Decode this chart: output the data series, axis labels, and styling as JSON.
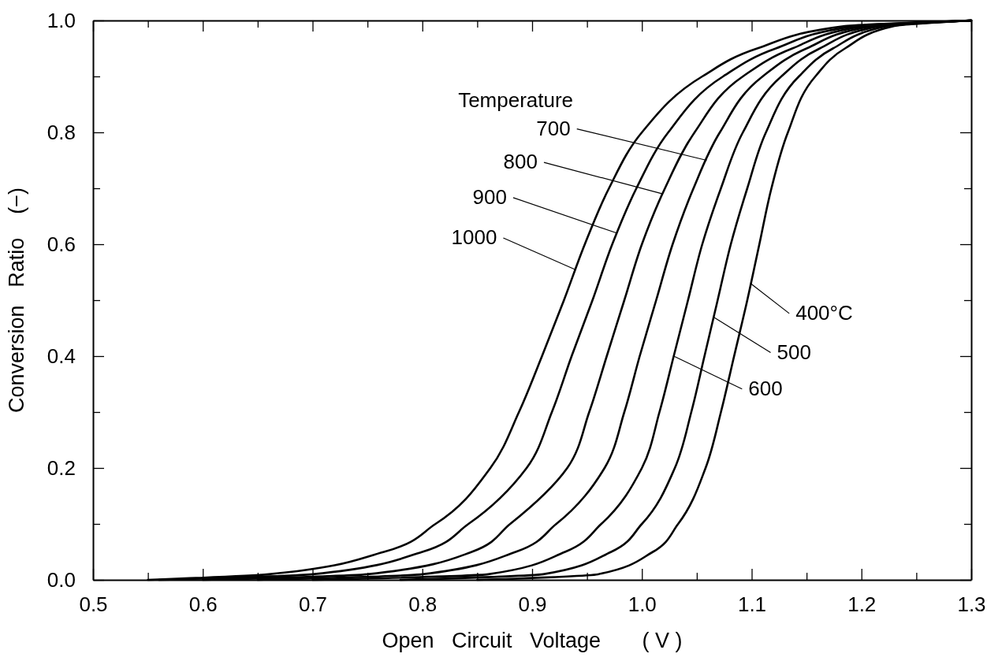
{
  "chart_data": {
    "type": "line",
    "xlabel": "Open   Circuit   Voltage       ( V )",
    "ylabel": "Conversion   Ratio    (−)",
    "annotations": [
      "Temperature",
      {
        "text": "700",
        "x": 1.059,
        "y": 0.75
      },
      {
        "text": "800",
        "x": 1.019,
        "y": 0.69
      },
      {
        "text": "900",
        "x": 0.977,
        "y": 0.62
      },
      {
        "text": "1000",
        "x": 0.939,
        "y": 0.555
      },
      {
        "text": "400°C",
        "x": 1.099,
        "y": 0.53
      },
      {
        "text": "500",
        "x": 1.065,
        "y": 0.47
      },
      {
        "text": "600",
        "x": 1.029,
        "y": 0.4
      }
    ],
    "xlim": [
      0.5,
      1.3
    ],
    "ylim": [
      0,
      1
    ],
    "xticks": [
      {
        "value": 0.5,
        "label": "0.5"
      },
      {
        "value": 0.55,
        "label": null
      },
      {
        "value": 0.6,
        "label": "0.6"
      },
      {
        "value": 0.65,
        "label": null
      },
      {
        "value": 0.7,
        "label": "0.7"
      },
      {
        "value": 0.75,
        "label": null
      },
      {
        "value": 0.8,
        "label": "0.8"
      },
      {
        "value": 0.85,
        "label": null
      },
      {
        "value": 0.9,
        "label": "0.9"
      },
      {
        "value": 0.95,
        "label": null
      },
      {
        "value": 1.0,
        "label": "1.0"
      },
      {
        "value": 1.05,
        "label": null
      },
      {
        "value": 1.1,
        "label": "1.1"
      },
      {
        "value": 1.15,
        "label": null
      },
      {
        "value": 1.2,
        "label": "1.2"
      },
      {
        "value": 1.25,
        "label": null
      },
      {
        "value": 1.3,
        "label": "1.3"
      }
    ],
    "yticks": [
      {
        "value": 0,
        "label": "0.0"
      },
      {
        "value": 0.1,
        "label": null
      },
      {
        "value": 0.2,
        "label": "0.2"
      },
      {
        "value": 0.3,
        "label": null
      },
      {
        "value": 0.4,
        "label": "0.4"
      },
      {
        "value": 0.5,
        "label": null
      },
      {
        "value": 0.6,
        "label": "0.6"
      },
      {
        "value": 0.7,
        "label": null
      },
      {
        "value": 0.8,
        "label": "0.8"
      },
      {
        "value": 0.9,
        "label": null
      },
      {
        "value": 1.0,
        "label": "1.0"
      }
    ],
    "grid": false,
    "marker": "none",
    "line_style": "solid",
    "series": [
      {
        "color": "#000000",
        "x": [
          0.55,
          0.66,
          0.765,
          0.812,
          0.862,
          0.888,
          0.909,
          0.929,
          0.948,
          0.97,
          1.0,
          1.055,
          1.105,
          1.185,
          1.3
        ],
        "values": [
          0,
          0.01,
          0.05,
          0.1,
          0.2,
          0.3,
          0.4,
          0.5,
          0.6,
          0.7,
          0.8,
          0.9,
          0.95,
          0.99,
          1
        ]
      },
      {
        "color": "#000000",
        "x": [
          0.56,
          0.7,
          0.8,
          0.842,
          0.895,
          0.918,
          0.936,
          0.955,
          0.973,
          0.995,
          1.024,
          1.074,
          1.122,
          1.195,
          1.3
        ],
        "values": [
          0,
          0.01,
          0.05,
          0.1,
          0.2,
          0.3,
          0.4,
          0.5,
          0.6,
          0.7,
          0.8,
          0.9,
          0.95,
          0.99,
          1
        ]
      },
      {
        "color": "#000000",
        "x": [
          0.6,
          0.75,
          0.845,
          0.88,
          0.932,
          0.952,
          0.968,
          0.984,
          1.0,
          1.021,
          1.048,
          1.092,
          1.137,
          1.203,
          1.3
        ],
        "values": [
          0,
          0.01,
          0.05,
          0.1,
          0.2,
          0.3,
          0.4,
          0.5,
          0.6,
          0.7,
          0.8,
          0.9,
          0.95,
          0.99,
          1
        ]
      },
      {
        "color": "#000000",
        "x": [
          0.65,
          0.8,
          0.885,
          0.922,
          0.966,
          0.984,
          0.998,
          1.013,
          1.028,
          1.047,
          1.071,
          1.11,
          1.15,
          1.21,
          1.3
        ],
        "values": [
          0,
          0.01,
          0.05,
          0.1,
          0.2,
          0.3,
          0.4,
          0.5,
          0.6,
          0.7,
          0.8,
          0.9,
          0.95,
          0.99,
          1
        ]
      },
      {
        "color": "#000000",
        "x": [
          0.7,
          0.86,
          0.93,
          0.963,
          1.0,
          1.016,
          1.029,
          1.042,
          1.055,
          1.072,
          1.092,
          1.127,
          1.162,
          1.217,
          1.3
        ],
        "values": [
          0,
          0.01,
          0.05,
          0.1,
          0.2,
          0.3,
          0.4,
          0.5,
          0.6,
          0.7,
          0.8,
          0.9,
          0.95,
          0.99,
          1
        ]
      },
      {
        "color": "#000000",
        "x": [
          0.78,
          0.91,
          0.972,
          1.0,
          1.03,
          1.045,
          1.057,
          1.069,
          1.081,
          1.096,
          1.113,
          1.143,
          1.174,
          1.224,
          1.3
        ],
        "values": [
          0,
          0.01,
          0.05,
          0.1,
          0.2,
          0.3,
          0.4,
          0.5,
          0.6,
          0.7,
          0.8,
          0.9,
          0.95,
          0.99,
          1
        ]
      },
      {
        "color": "#000000",
        "x": [
          0.85,
          0.96,
          1.01,
          1.033,
          1.058,
          1.072,
          1.084,
          1.096,
          1.107,
          1.118,
          1.133,
          1.158,
          1.185,
          1.23,
          1.3
        ],
        "values": [
          0,
          0.01,
          0.05,
          0.1,
          0.2,
          0.3,
          0.4,
          0.5,
          0.6,
          0.7,
          0.8,
          0.9,
          0.95,
          0.99,
          1
        ]
      }
    ]
  }
}
